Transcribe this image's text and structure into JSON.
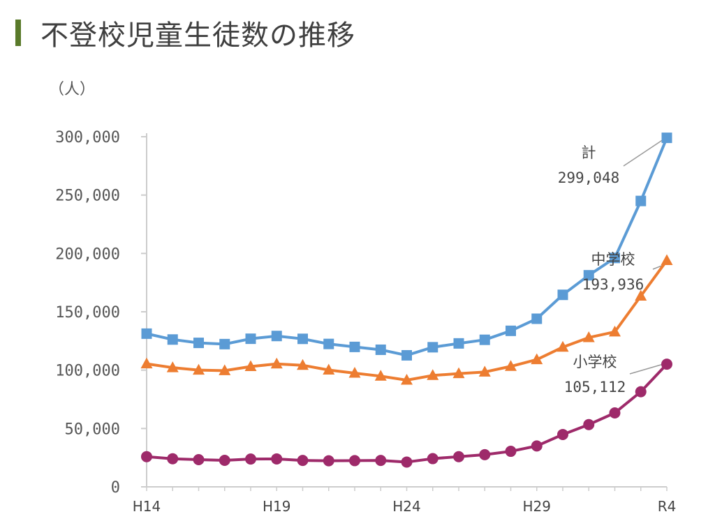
{
  "header": {
    "title": "不登校児童生徒数の推移"
  },
  "colors": {
    "title_bar": "#5a7a2a"
  },
  "chart_data": {
    "type": "line",
    "title": "不登校児童生徒数の推移",
    "ylabel": "（人）",
    "xlabel": "",
    "ylim": [
      0,
      300000
    ],
    "y_ticks": [
      0,
      50000,
      100000,
      150000,
      200000,
      250000,
      300000
    ],
    "y_tick_labels": [
      "0",
      "50,000",
      "100,000",
      "150,000",
      "200,000",
      "250,000",
      "300,000"
    ],
    "x": [
      "H14",
      "H15",
      "H16",
      "H17",
      "H18",
      "H19",
      "H20",
      "H21",
      "H22",
      "H23",
      "H24",
      "H25",
      "H26",
      "H27",
      "H28",
      "H29",
      "H30",
      "R1",
      "R2",
      "R3",
      "R4"
    ],
    "x_tick_labels": [
      "H14",
      "H19",
      "H24",
      "H29",
      "R4"
    ],
    "grid": false,
    "series": [
      {
        "name": "計",
        "color": "#5b9bd5",
        "marker": "square",
        "values": [
          131252,
          126226,
          123358,
          122287,
          126894,
          129255,
          126805,
          122432,
          119891,
          117458,
          112689,
          119617,
          122897,
          125991,
          133683,
          144031,
          164528,
          181272,
          196127,
          244940,
          299048
        ],
        "annotation": {
          "label": "計",
          "value": "299,048"
        }
      },
      {
        "name": "中学校",
        "color": "#ed7d31",
        "marker": "triangle",
        "values": [
          105383,
          102149,
          100040,
          99578,
          103069,
          105328,
          104153,
          100105,
          97428,
          94836,
          91446,
          95442,
          97033,
          98408,
          103235,
          108999,
          119687,
          127922,
          132777,
          163442,
          193936
        ],
        "annotation": {
          "label": "中学校",
          "value": "193,936"
        }
      },
      {
        "name": "小学校",
        "color": "#9e2a6a",
        "marker": "circle",
        "values": [
          25869,
          24077,
          23318,
          22709,
          23825,
          23927,
          22652,
          22327,
          22463,
          22622,
          21243,
          24175,
          25864,
          27583,
          30448,
          35032,
          44841,
          53350,
          63350,
          81498,
          105112
        ],
        "annotation": {
          "label": "小学校",
          "value": "105,112"
        }
      }
    ]
  }
}
